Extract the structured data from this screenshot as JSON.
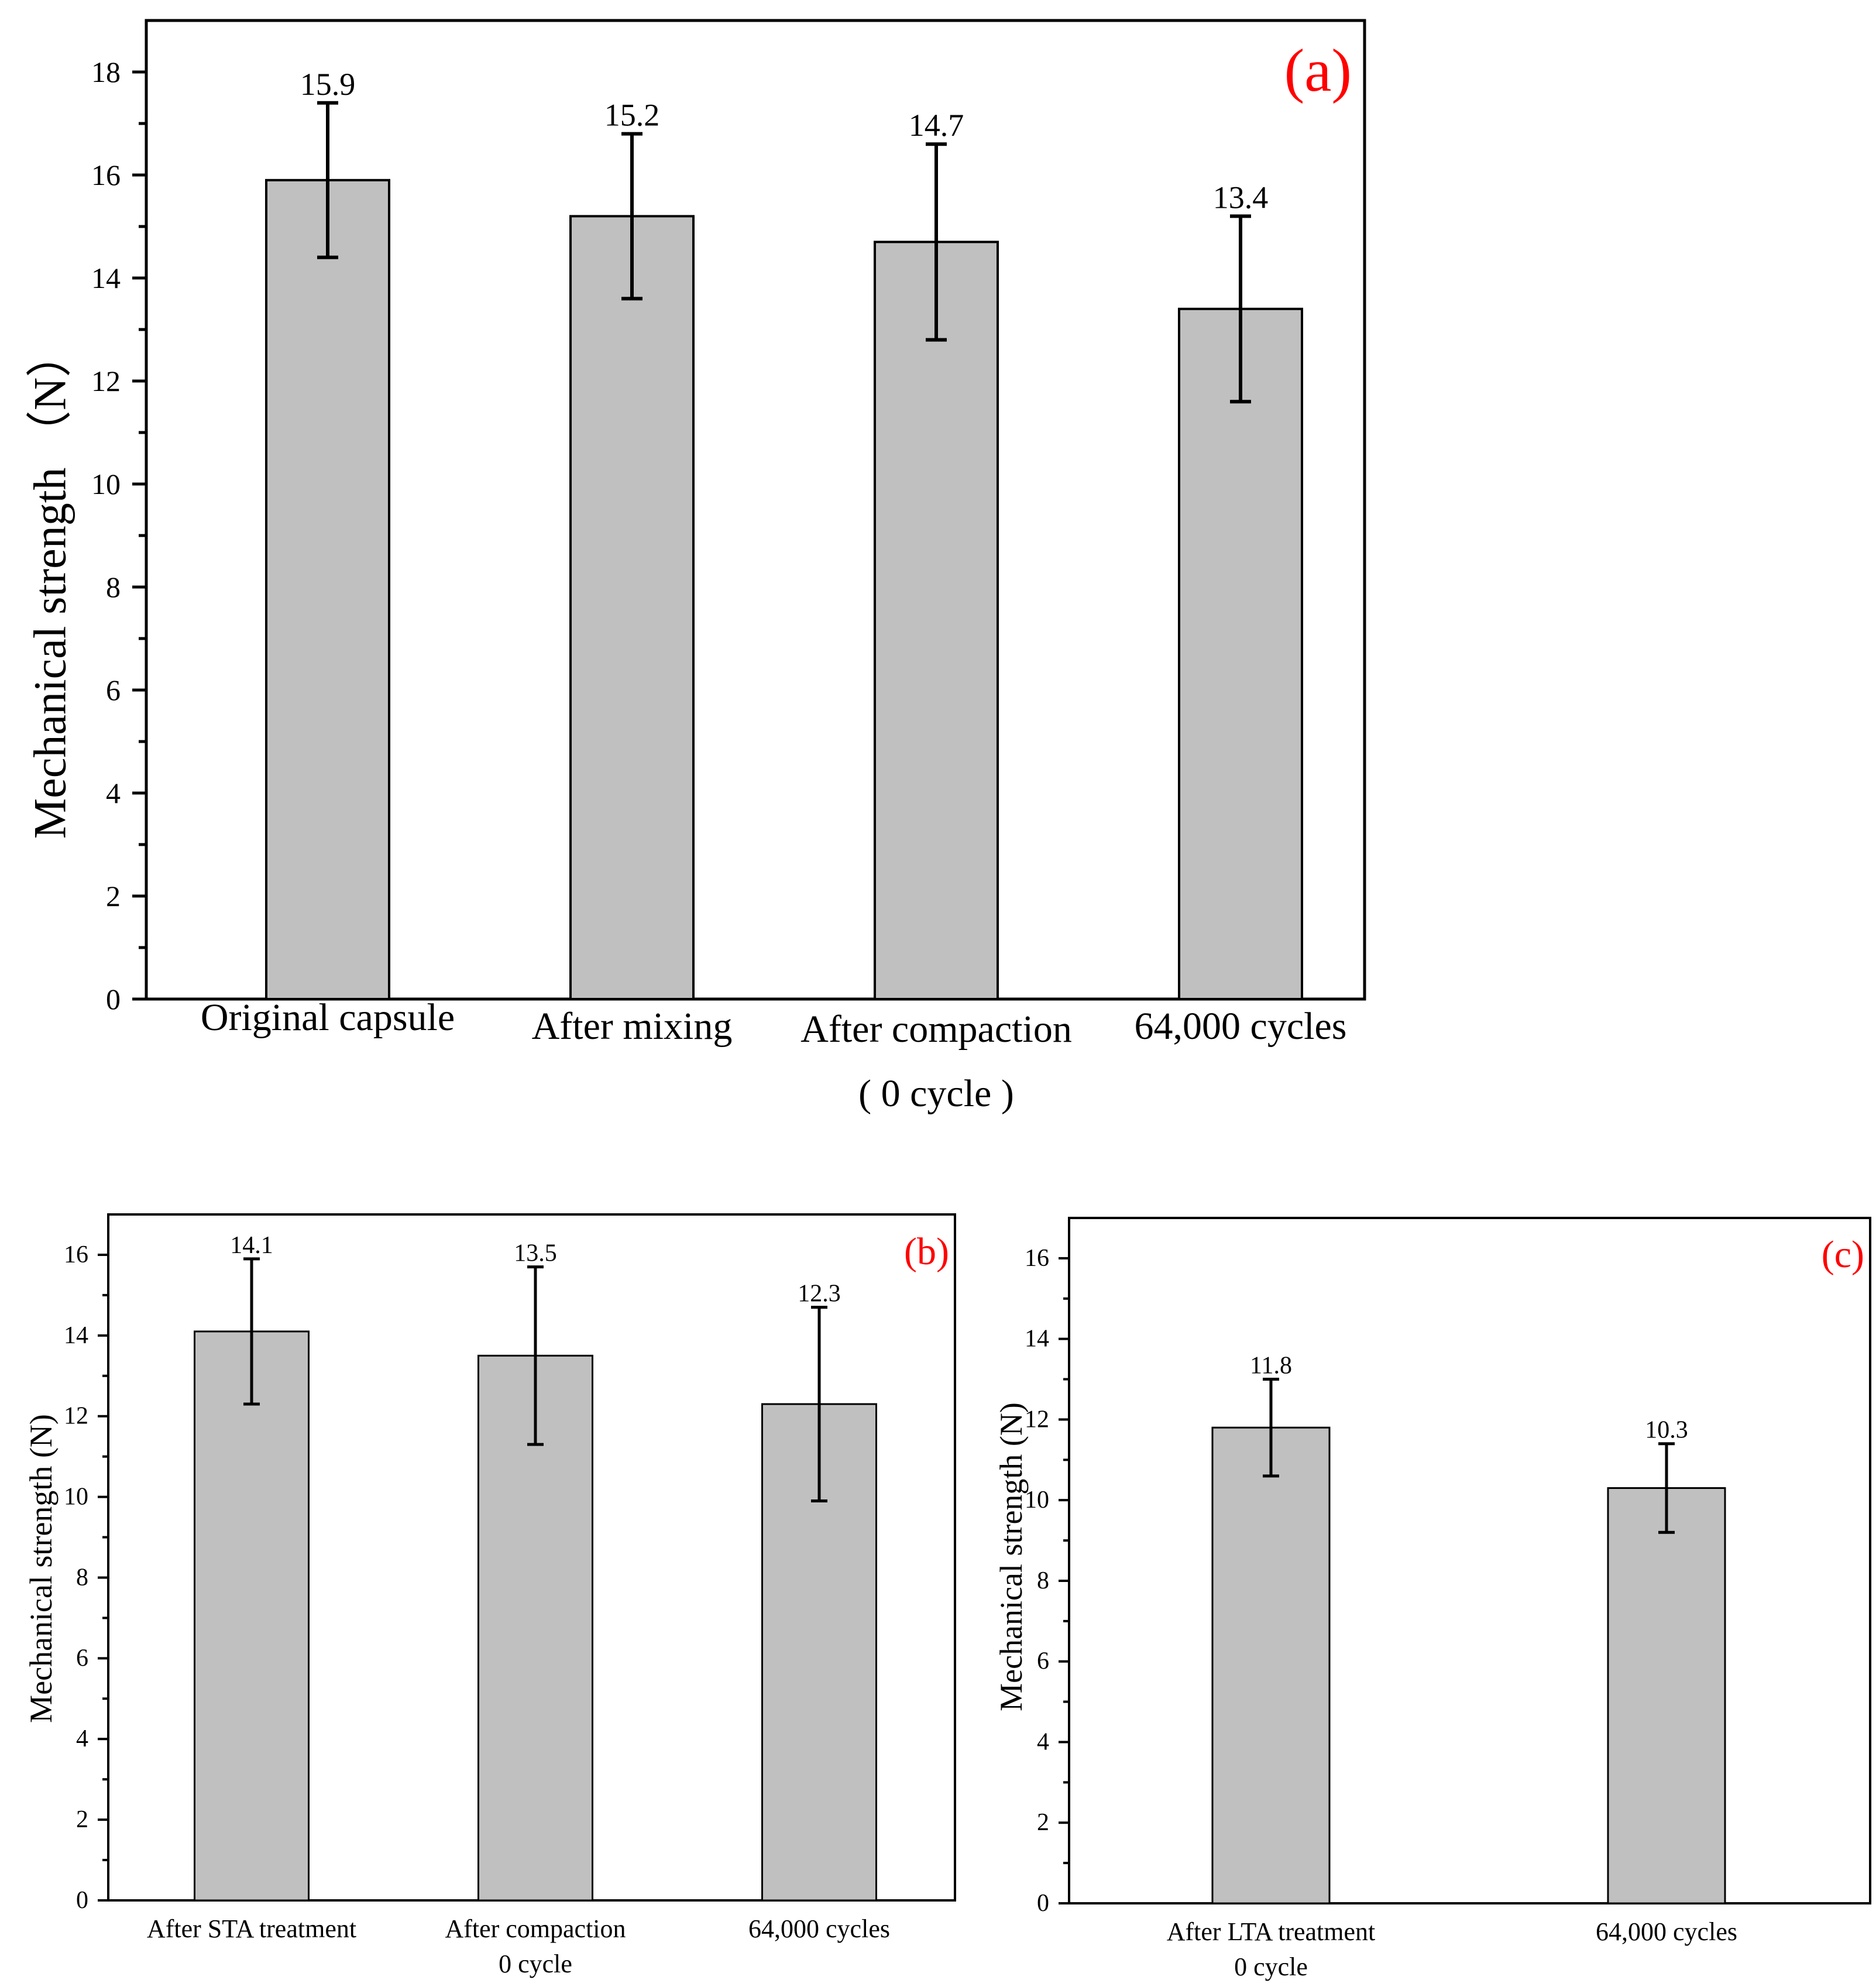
{
  "chart_data": [
    {
      "type": "bar",
      "panel_label": "(a)",
      "panel_label_color": "#ff0000",
      "ylabel": "Mechanical strength （N）",
      "ylim": [
        0,
        19
      ],
      "yticks": [
        0,
        2,
        4,
        6,
        8,
        10,
        12,
        14,
        16,
        18
      ],
      "categories": [
        {
          "lines": [
            "Original capsule"
          ]
        },
        {
          "lines": [
            "After mixing"
          ]
        },
        {
          "lines": [
            "After compaction",
            "( 0 cycle )"
          ]
        },
        {
          "lines": [
            "64,000  cycles"
          ]
        }
      ],
      "values": [
        15.9,
        15.2,
        14.7,
        13.4
      ],
      "value_labels": [
        "15.9",
        "15.2",
        "14.7",
        "13.4"
      ],
      "errors": [
        1.5,
        1.6,
        1.9,
        1.8
      ],
      "bar_color": "#c0c0c0"
    },
    {
      "type": "bar",
      "panel_label": "(b)",
      "panel_label_color": "#ff0000",
      "ylabel": "Mechanical strength (N)",
      "ylim": [
        0,
        17
      ],
      "yticks": [
        0,
        2,
        4,
        6,
        8,
        10,
        12,
        14,
        16
      ],
      "categories": [
        {
          "lines": [
            "After STA treatment"
          ]
        },
        {
          "lines": [
            "After compaction",
            "0 cycle"
          ]
        },
        {
          "lines": [
            "64,000 cycles"
          ]
        }
      ],
      "values": [
        14.1,
        13.5,
        12.3
      ],
      "value_labels": [
        "14.1",
        "13.5",
        "12.3"
      ],
      "errors": [
        1.8,
        2.2,
        2.4
      ],
      "bar_color": "#c0c0c0"
    },
    {
      "type": "bar",
      "panel_label": "(c)",
      "panel_label_color": "#ff0000",
      "ylabel": "Mechanical strength (N)",
      "ylim": [
        0,
        17
      ],
      "yticks": [
        0,
        2,
        4,
        6,
        8,
        10,
        12,
        14,
        16
      ],
      "categories": [
        {
          "lines": [
            "After LTA treatment",
            "0 cycle"
          ]
        },
        {
          "lines": [
            "64,000 cycles"
          ]
        }
      ],
      "values": [
        11.8,
        10.3
      ],
      "value_labels": [
        "11.8",
        "10.3"
      ],
      "errors": [
        1.2,
        1.1
      ],
      "bar_color": "#c0c0c0"
    }
  ]
}
